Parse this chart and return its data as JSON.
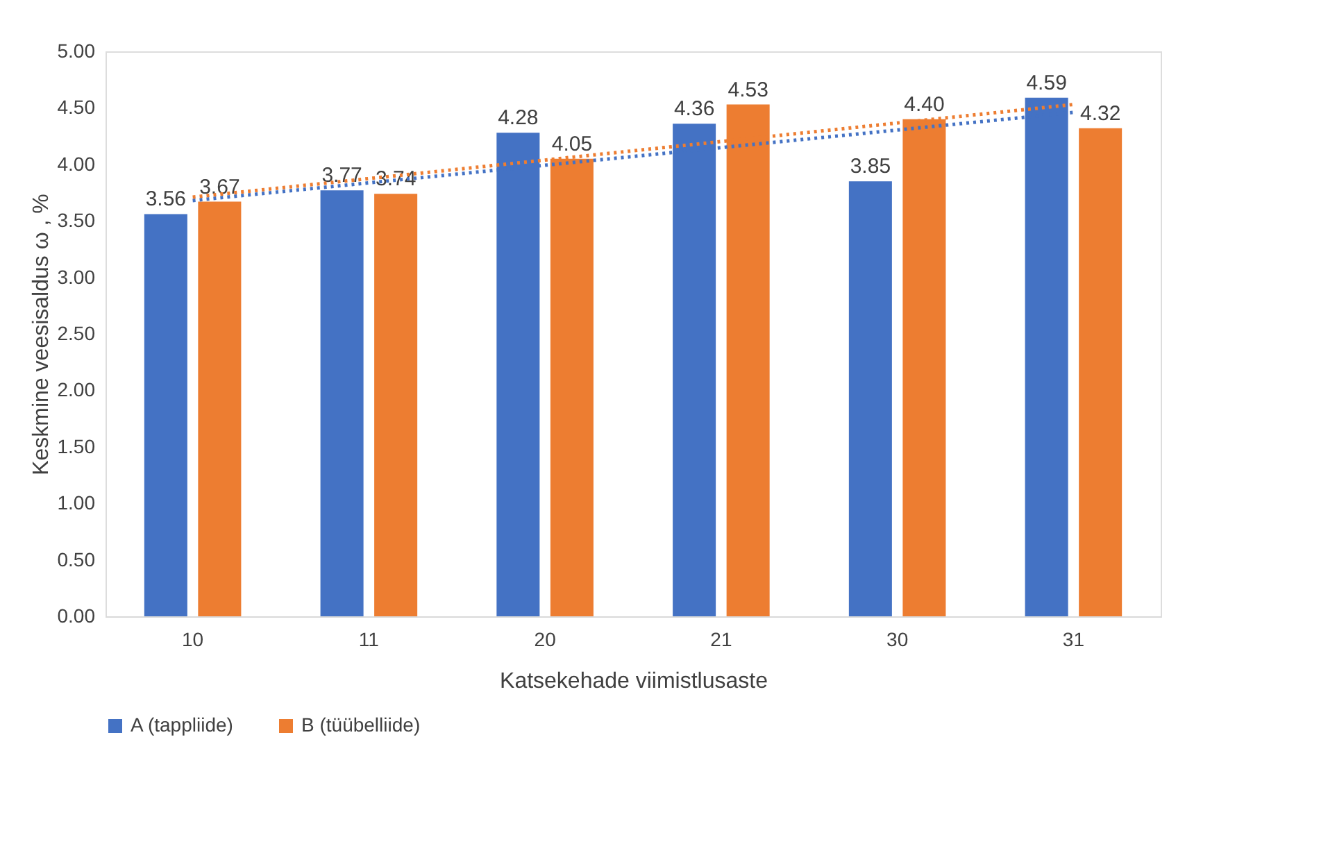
{
  "chart_data": {
    "type": "bar",
    "xlabel": "Katsekehade viimistlusaste",
    "ylabel": "Keskmine veesisaldus ω , %",
    "categories": [
      "10",
      "11",
      "20",
      "21",
      "30",
      "31"
    ],
    "series": [
      {
        "name": "A (tappliide)",
        "color": "#4472c4",
        "values": [
          3.56,
          3.77,
          4.28,
          4.36,
          3.85,
          4.59
        ],
        "value_labels": [
          "3.56",
          "3.77",
          "4.28",
          "4.36",
          "3.85",
          "4.59"
        ]
      },
      {
        "name": "B (tüübelliide)",
        "color": "#ed7d31",
        "values": [
          3.67,
          3.74,
          4.05,
          4.53,
          4.4,
          4.32
        ],
        "value_labels": [
          "3.67",
          "3.74",
          "4.05",
          "4.53",
          "4.40",
          "4.32"
        ]
      },
      {
        "type": "line",
        "color": "#4472c4",
        "x": [
          "10",
          "31"
        ],
        "values": [
          3.68,
          4.46
        ],
        "line_style": "dotted"
      },
      {
        "type": "line",
        "color": "#ed7d31",
        "x": [
          "10",
          "31"
        ],
        "values": [
          3.71,
          4.53
        ],
        "line_style": "dotted"
      }
    ],
    "ylim": [
      0,
      5
    ],
    "yticks": [
      {
        "value": 0,
        "label": "0.00"
      },
      {
        "value": 0.5,
        "label": "0.50"
      },
      {
        "value": 1,
        "label": "1.00"
      },
      {
        "value": 1.5,
        "label": "1.50"
      },
      {
        "value": 2,
        "label": "2.00"
      },
      {
        "value": 2.5,
        "label": "2.50"
      },
      {
        "value": 3,
        "label": "3.00"
      },
      {
        "value": 3.5,
        "label": "3.50"
      },
      {
        "value": 4,
        "label": "4.00"
      },
      {
        "value": 4.5,
        "label": "4.50"
      },
      {
        "value": 5,
        "label": "5.00"
      }
    ],
    "grid": false,
    "legend": "bottom"
  }
}
